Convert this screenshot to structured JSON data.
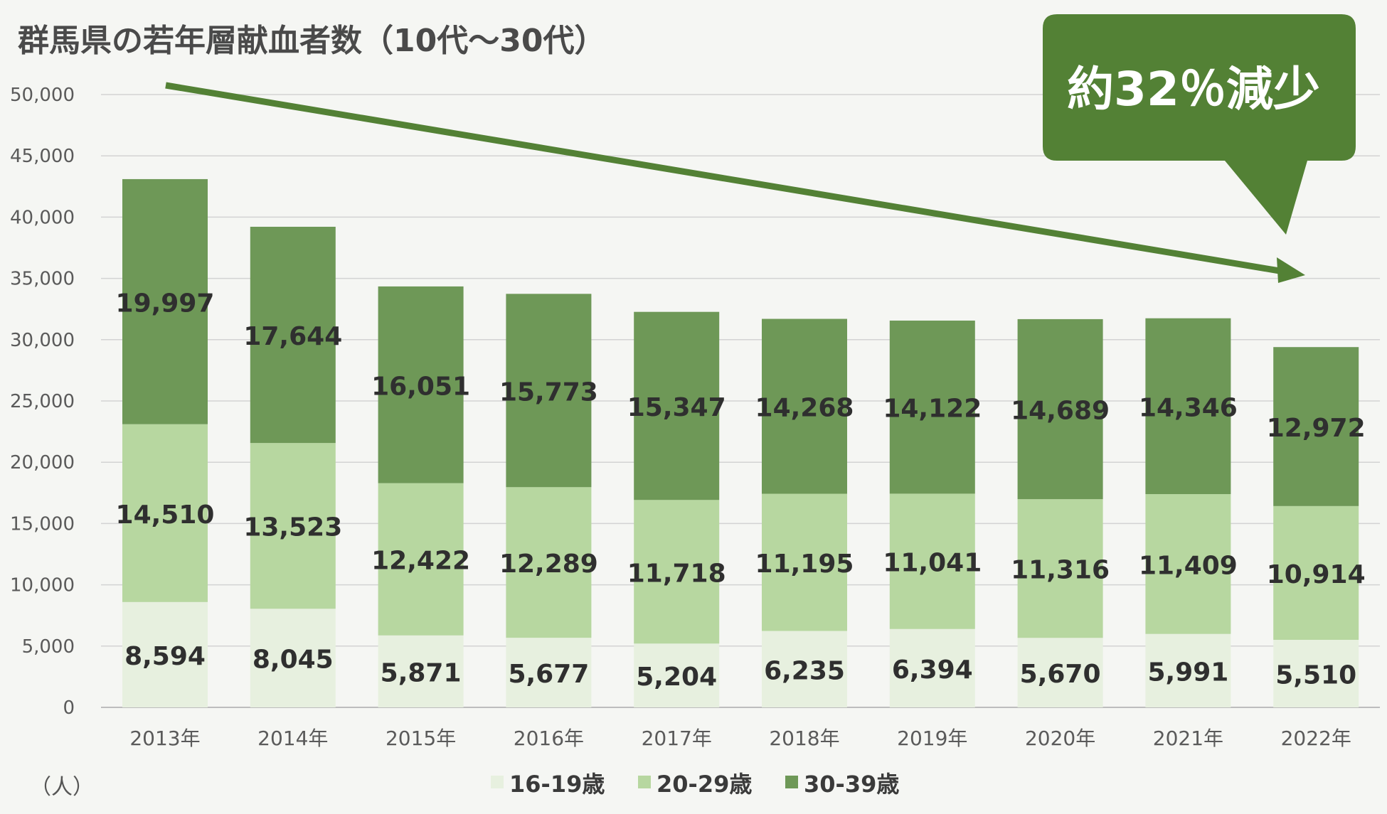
{
  "chart_data": {
    "type": "bar",
    "stacked": true,
    "title": "群馬県の若年層献血者数（10代～30代）",
    "unit_label": "（人）",
    "categories": [
      "2013年",
      "2014年",
      "2015年",
      "2016年",
      "2017年",
      "2018年",
      "2019年",
      "2020年",
      "2021年",
      "2022年"
    ],
    "series": [
      {
        "name": "16-19歳",
        "color": "#e7f0df",
        "values": [
          8594,
          8045,
          5871,
          5677,
          5204,
          6235,
          6394,
          5670,
          5991,
          5510
        ]
      },
      {
        "name": "20-29歳",
        "color": "#b7d7a0",
        "values": [
          14510,
          13523,
          12422,
          12289,
          11718,
          11195,
          11041,
          11316,
          11409,
          10914
        ]
      },
      {
        "name": "30-39歳",
        "color": "#6e9857",
        "values": [
          19997,
          17644,
          16051,
          15773,
          15347,
          14268,
          14122,
          14689,
          14346,
          12972
        ]
      }
    ],
    "ylim": [
      0,
      50000
    ],
    "yticks": [
      0,
      5000,
      10000,
      15000,
      20000,
      25000,
      30000,
      35000,
      40000,
      45000,
      50000
    ],
    "ytick_labels": [
      "0",
      "5,000",
      "10,000",
      "15,000",
      "20,000",
      "25,000",
      "30,000",
      "35,000",
      "40,000",
      "45,000",
      "50,000"
    ],
    "grid": true,
    "legend": "bottom-center",
    "annotation": {
      "text": "約32％減少",
      "color": "#538135"
    }
  }
}
